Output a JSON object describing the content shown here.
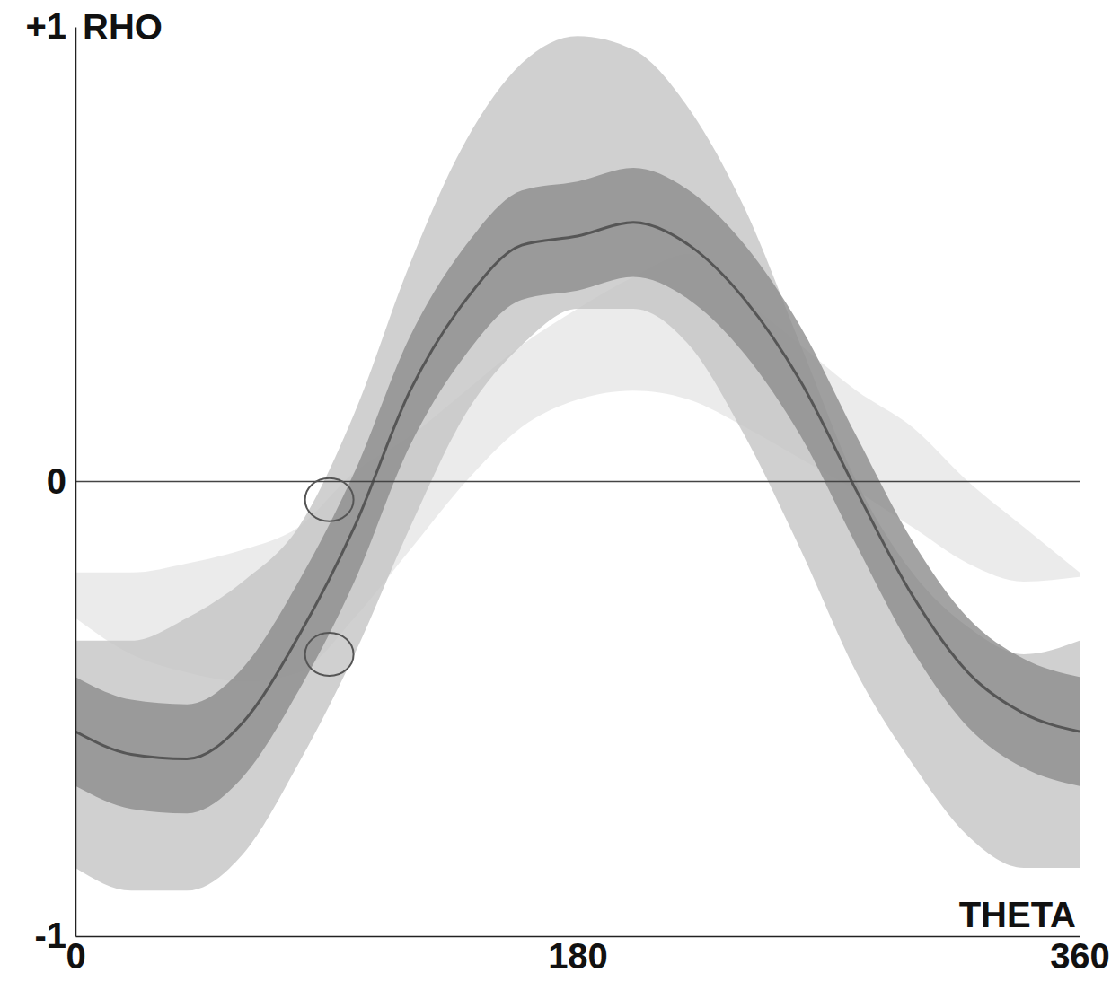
{
  "chart_data": {
    "type": "band",
    "x_label": "THETA",
    "y_label": "RHO",
    "x": [
      0,
      20,
      40,
      60,
      80,
      100,
      120,
      140,
      160,
      180,
      200,
      220,
      240,
      260,
      280,
      300,
      320,
      340,
      360
    ],
    "xlim": [
      0,
      360
    ],
    "xticks": [
      0,
      180,
      360
    ],
    "ylim": [
      -1,
      1
    ],
    "yticks": [
      {
        "value": 1,
        "label": "+1"
      },
      0,
      -1
    ],
    "reference_line": 0,
    "circled_points": [
      {
        "x": 91,
        "y": -0.04
      },
      {
        "x": 91,
        "y": -0.38
      }
    ],
    "series": [
      {
        "type": "band",
        "color": "#e6e6e6",
        "lower": [
          -0.3,
          -0.38,
          -0.42,
          -0.44,
          -0.42,
          -0.3,
          -0.15,
          0.0,
          0.12,
          0.18,
          0.2,
          0.18,
          0.12,
          0.05,
          -0.02,
          -0.1,
          -0.18,
          -0.22,
          -0.21
        ],
        "upper": [
          -0.2,
          -0.2,
          -0.18,
          -0.15,
          -0.1,
          0.02,
          0.1,
          0.2,
          0.3,
          0.38,
          0.45,
          0.5,
          0.4,
          0.3,
          0.2,
          0.12,
          0.0,
          -0.1,
          -0.2
        ]
      },
      {
        "type": "band",
        "color": "#c4c4c4",
        "lower": [
          -0.85,
          -0.9,
          -0.9,
          -0.82,
          -0.62,
          -0.38,
          -0.1,
          0.15,
          0.3,
          0.38,
          0.38,
          0.3,
          0.1,
          -0.15,
          -0.42,
          -0.62,
          -0.78,
          -0.85,
          -0.85
        ],
        "upper": [
          -0.35,
          -0.35,
          -0.3,
          -0.22,
          -0.1,
          0.15,
          0.48,
          0.75,
          0.92,
          0.98,
          0.95,
          0.82,
          0.6,
          0.3,
          0.0,
          -0.2,
          -0.32,
          -0.38,
          -0.35
        ]
      },
      {
        "type": "band",
        "color": "#8c8c8c",
        "lower": [
          -0.67,
          -0.72,
          -0.73,
          -0.65,
          -0.46,
          -0.22,
          0.08,
          0.28,
          0.4,
          0.42,
          0.45,
          0.4,
          0.28,
          0.1,
          -0.14,
          -0.37,
          -0.54,
          -0.63,
          -0.67
        ],
        "upper": [
          -0.43,
          -0.48,
          -0.49,
          -0.41,
          -0.22,
          0.02,
          0.32,
          0.52,
          0.64,
          0.66,
          0.69,
          0.64,
          0.52,
          0.34,
          0.1,
          -0.13,
          -0.3,
          -0.39,
          -0.43
        ]
      },
      {
        "type": "line",
        "color": "#4a4a4a",
        "values": [
          -0.55,
          -0.6,
          -0.61,
          -0.53,
          -0.34,
          -0.1,
          0.2,
          0.4,
          0.52,
          0.54,
          0.57,
          0.52,
          0.4,
          0.22,
          -0.02,
          -0.25,
          -0.42,
          -0.51,
          -0.55
        ]
      }
    ]
  }
}
